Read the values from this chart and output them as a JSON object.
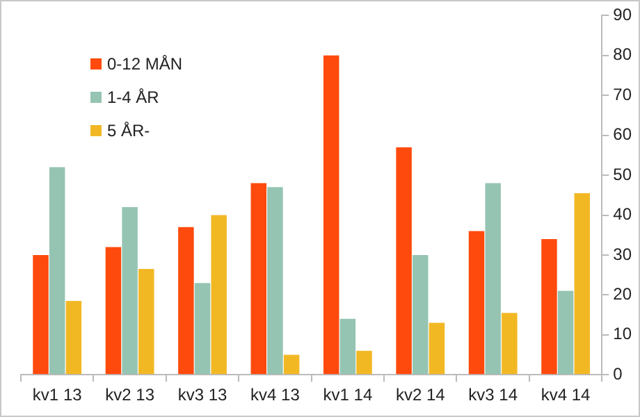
{
  "chart_data": {
    "type": "bar",
    "categories": [
      "kv1 13",
      "kv2 13",
      "kv3 13",
      "kv4 13",
      "kv1 14",
      "kv2 14",
      "kv3 14",
      "kv4 14"
    ],
    "series": [
      {
        "name": "0-12 MÅN",
        "color": "#ff4a0d",
        "values": [
          30,
          32,
          37,
          48,
          80,
          57,
          36,
          34
        ]
      },
      {
        "name": "1-4 ÅR",
        "color": "#95c4b2",
        "values": [
          52,
          42,
          23,
          47,
          14,
          30,
          48,
          21
        ]
      },
      {
        "name": "5 ÅR-",
        "color": "#f2b824",
        "values": [
          18.5,
          26.5,
          40,
          5,
          6,
          13,
          15.5,
          45.5
        ]
      }
    ],
    "ylim": [
      0,
      90
    ],
    "yticks": [
      0,
      10,
      20,
      30,
      40,
      50,
      60,
      70,
      80,
      90
    ],
    "grid": false,
    "legend": "top left"
  }
}
